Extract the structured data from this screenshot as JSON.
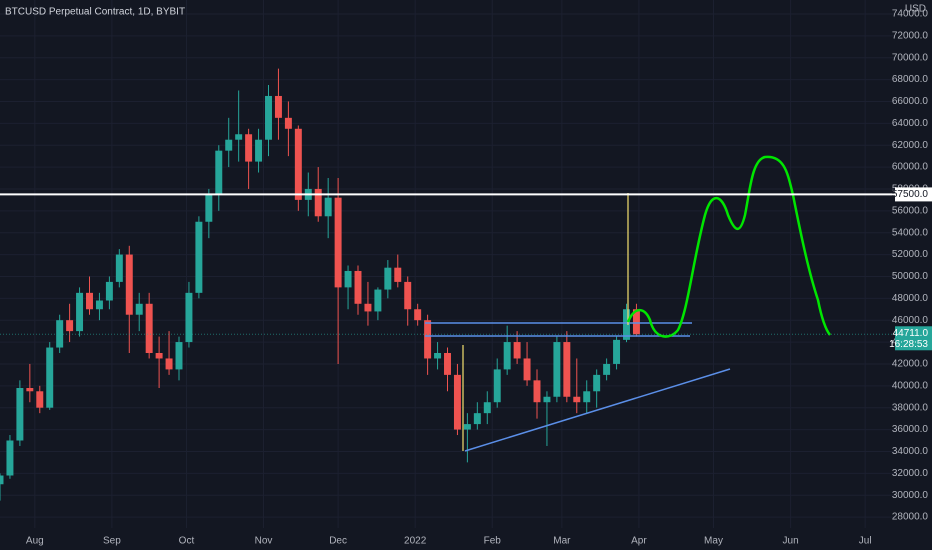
{
  "chart_data": {
    "type": "candlestick",
    "title": "BTCUSD Perpetual Contract, 1D, BYBIT",
    "currency": "USD",
    "up_color": "#26a69a",
    "down_color": "#ef5350",
    "grid": true,
    "x": [
      -14,
      -10,
      -6,
      -2,
      2,
      6,
      10,
      14,
      18,
      22,
      26,
      30,
      34,
      38,
      42,
      46,
      50,
      54,
      58,
      62,
      66,
      70,
      74,
      78,
      82,
      86,
      90,
      94,
      98,
      102,
      106,
      110,
      114,
      118,
      122,
      126,
      130,
      134,
      138,
      142,
      146,
      150,
      154,
      158,
      162,
      166,
      170,
      174,
      178,
      182,
      186,
      190,
      194,
      198,
      202,
      206,
      210,
      214,
      218,
      222,
      226,
      230,
      234,
      238,
      242
    ],
    "open": [
      31000,
      31800,
      35000,
      39800,
      39500,
      38000,
      43500,
      46000,
      45000,
      48500,
      47000,
      47800,
      49500,
      52000,
      46500,
      47500,
      43000,
      42500,
      41500,
      44000,
      48500,
      55000,
      57500,
      61500,
      62500,
      63000,
      60500,
      62500,
      66500,
      64500,
      63500,
      57000,
      58000,
      55500,
      57200,
      49000,
      50500,
      47500,
      46800,
      48800,
      50800,
      49500,
      47000,
      46000,
      42500,
      43000,
      41000,
      36000,
      36500,
      37500,
      38500,
      41500,
      44000,
      42500,
      40500,
      38500,
      39000,
      44000,
      39000,
      38500,
      39500,
      41000,
      42000,
      44200,
      47000
    ],
    "high": [
      32000,
      35500,
      40500,
      42000,
      40000,
      44000,
      46500,
      47500,
      49000,
      50000,
      48500,
      50000,
      52500,
      52800,
      48500,
      48500,
      44500,
      45000,
      44500,
      49500,
      55500,
      58000,
      62000,
      64500,
      67000,
      63500,
      63500,
      67500,
      69000,
      66000,
      63800,
      59500,
      60000,
      59000,
      59000,
      51000,
      51000,
      49500,
      49000,
      51500,
      52000,
      50000,
      47500,
      46500,
      44000,
      43500,
      42000,
      37500,
      38500,
      39500,
      42500,
      45500,
      45000,
      44000,
      41500,
      39500,
      44500,
      45000,
      42500,
      40500,
      41500,
      42500,
      44500,
      47500,
      47500
    ],
    "low": [
      29500,
      31500,
      34500,
      38500,
      37500,
      37800,
      43000,
      44000,
      44500,
      46500,
      46000,
      47000,
      49000,
      43000,
      45000,
      42500,
      39800,
      41000,
      40500,
      43500,
      48000,
      53500,
      56000,
      60000,
      60500,
      58000,
      59500,
      61000,
      62500,
      61000,
      56000,
      55500,
      55000,
      53500,
      42000,
      47000,
      46500,
      45500,
      46000,
      48000,
      49000,
      45500,
      45500,
      41000,
      41500,
      39500,
      35500,
      33000,
      36000,
      36500,
      38000,
      41000,
      42000,
      40000,
      37000,
      34500,
      38500,
      38500,
      37500,
      37500,
      38000,
      40500,
      41500,
      44000,
      44500
    ],
    "close": [
      31800,
      35000,
      39800,
      39500,
      38000,
      43500,
      46000,
      45000,
      48500,
      47000,
      47800,
      49500,
      52000,
      46500,
      47500,
      43000,
      42500,
      41500,
      44000,
      48500,
      55000,
      57500,
      61500,
      62500,
      63000,
      60500,
      62500,
      66500,
      64500,
      63500,
      57000,
      58000,
      55500,
      57200,
      49000,
      50500,
      47500,
      46800,
      48800,
      50800,
      49500,
      47000,
      46000,
      42500,
      43000,
      41000,
      36000,
      36500,
      37500,
      38500,
      41500,
      44000,
      42500,
      40500,
      38500,
      39000,
      44000,
      39000,
      38500,
      39500,
      41000,
      42000,
      44200,
      47000,
      44711
    ],
    "xlim": [
      -14,
      346
    ],
    "xticks": [
      {
        "value": 0,
        "label": "Aug"
      },
      {
        "value": 31,
        "label": "Sep"
      },
      {
        "value": 61,
        "label": "Oct"
      },
      {
        "value": 92,
        "label": "Nov"
      },
      {
        "value": 122,
        "label": "Dec"
      },
      {
        "value": 153,
        "label": "2022"
      },
      {
        "value": 184,
        "label": "Feb"
      },
      {
        "value": 212,
        "label": "Mar"
      },
      {
        "value": 243,
        "label": "Apr"
      },
      {
        "value": 273,
        "label": "May"
      },
      {
        "value": 304,
        "label": "Jun"
      },
      {
        "value": 334,
        "label": "Jul"
      }
    ],
    "ylim": [
      27000,
      75000
    ],
    "yticks": [
      {
        "value": 28000,
        "label": "28000.0"
      },
      {
        "value": 30000,
        "label": "30000.0"
      },
      {
        "value": 32000,
        "label": "32000.0"
      },
      {
        "value": 34000,
        "label": "34000.0"
      },
      {
        "value": 36000,
        "label": "36000.0"
      },
      {
        "value": 38000,
        "label": "38000.0"
      },
      {
        "value": 40000,
        "label": "40000.0"
      },
      {
        "value": 42000,
        "label": "42000.0"
      },
      {
        "value": 44000,
        "label": "44000.0"
      },
      {
        "value": 46000,
        "label": "46000.0"
      },
      {
        "value": 48000,
        "label": "48000.0"
      },
      {
        "value": 50000,
        "label": "50000.0"
      },
      {
        "value": 52000,
        "label": "52000.0"
      },
      {
        "value": 54000,
        "label": "54000.0"
      },
      {
        "value": 56000,
        "label": "56000.0"
      },
      {
        "value": 58000,
        "label": "58000.0"
      },
      {
        "value": 60000,
        "label": "60000.0"
      },
      {
        "value": 62000,
        "label": "62000.0"
      },
      {
        "value": 64000,
        "label": "64000.0"
      },
      {
        "value": 66000,
        "label": "66000.0"
      },
      {
        "value": 68000,
        "label": "68000.0"
      },
      {
        "value": 70000,
        "label": "70000.0"
      },
      {
        "value": 72000,
        "label": "72000.0"
      },
      {
        "value": 74000,
        "label": "74000.0"
      }
    ],
    "horizontal_line": {
      "value": 57500,
      "label": "57500.0"
    },
    "last_price": {
      "value": 44711,
      "label": "44711.0",
      "countdown": "16:28:53"
    }
  }
}
